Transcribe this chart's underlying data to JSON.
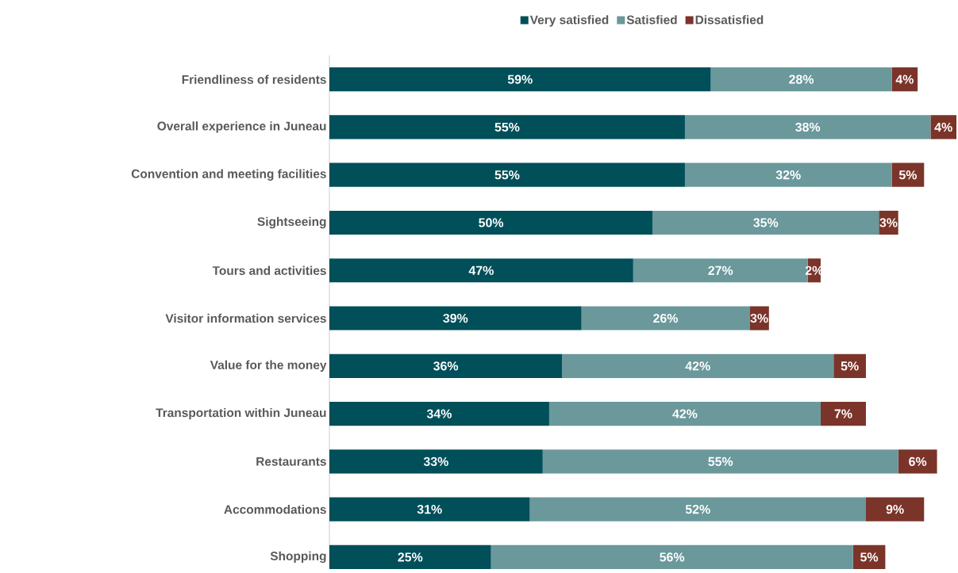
{
  "chart_data": {
    "type": "bar",
    "orientation": "horizontal",
    "stacked": true,
    "legend": "top",
    "categories": [
      "Friendliness of residents",
      "Overall experience in Juneau",
      "Convention and meeting facilities",
      "Sightseeing",
      "Tours and activities",
      "Visitor information services",
      "Value for the money",
      "Transportation within Juneau",
      "Restaurants",
      "Accommodations",
      "Shopping"
    ],
    "series": [
      {
        "name": "Very satisfied",
        "color": "#004f59",
        "values": [
          59,
          55,
          55,
          50,
          47,
          39,
          36,
          34,
          33,
          31,
          25
        ],
        "value_labels": [
          "59%",
          "55%",
          "55%",
          "50%",
          "47%",
          "39%",
          "36%",
          "34%",
          "33%",
          "31%",
          "25%"
        ]
      },
      {
        "name": "Satisfied",
        "color": "#6a989b",
        "values": [
          28,
          38,
          32,
          35,
          27,
          26,
          42,
          42,
          55,
          52,
          56
        ],
        "value_labels": [
          "28%",
          "38%",
          "32%",
          "35%",
          "27%",
          "26%",
          "42%",
          "42%",
          "55%",
          "52%",
          "56%"
        ]
      },
      {
        "name": "Dissatisfied",
        "color": "#7b3429",
        "values": [
          4,
          4,
          5,
          3,
          2,
          3,
          5,
          7,
          6,
          9,
          5
        ],
        "value_labels": [
          "4%",
          "4%",
          "5%",
          "3%",
          "2%",
          "3%",
          "5%",
          "7%",
          "6%",
          "9%",
          "5%"
        ]
      }
    ]
  }
}
